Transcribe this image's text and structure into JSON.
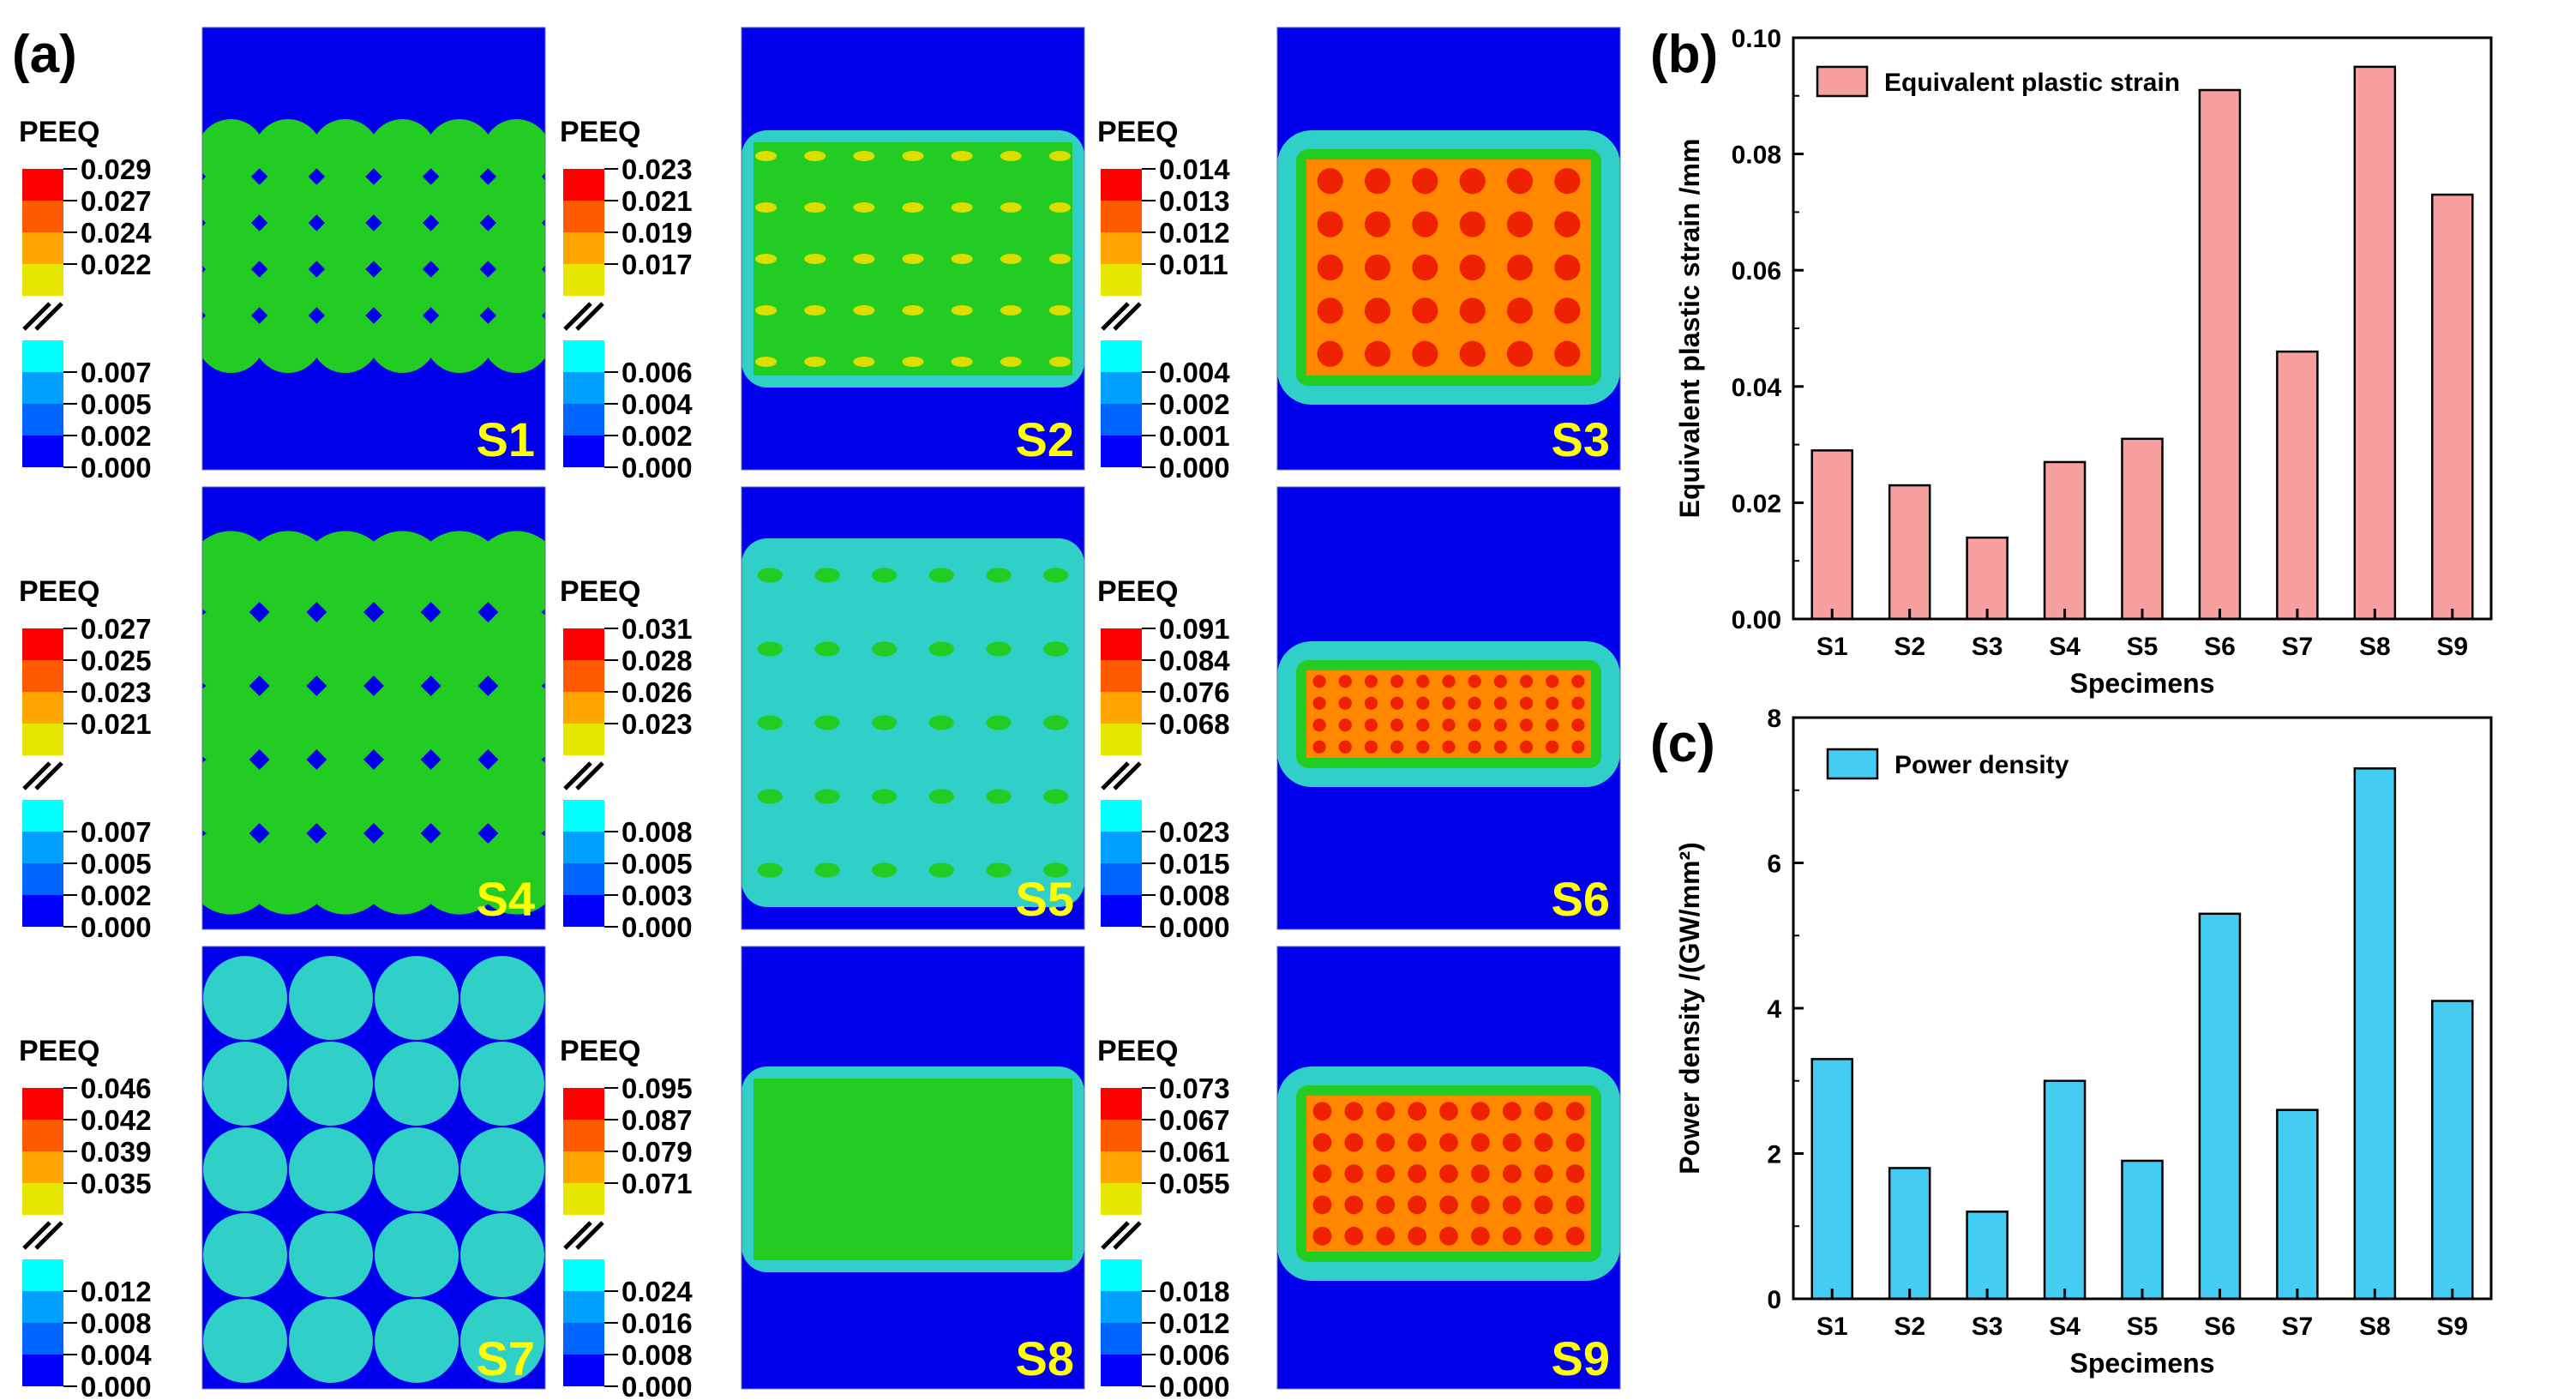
{
  "figure": {
    "panel_a_label": "(a)",
    "panel_b_label": "(b)",
    "panel_c_label": "(c)",
    "legend_title": "PEEQ",
    "legend_colors": {
      "high": [
        "#ff0000",
        "#ff5a00",
        "#ffa500",
        "#e6e600"
      ],
      "low": [
        "#00ffff",
        "#00a0ff",
        "#0064ff",
        "#0000ff"
      ]
    },
    "contour_colors": {
      "background": "#0000ee",
      "cyan": "#30d0c8",
      "green": "#22cc22",
      "yellow": "#dddd00",
      "red": "#ee2200",
      "orange": "#ff8800"
    }
  },
  "specimens": [
    {
      "label": "S1",
      "peeq_high": [
        "0.029",
        "0.027",
        "0.024",
        "0.022"
      ],
      "peeq_low": [
        "0.007",
        "0.005",
        "0.002",
        "0.000"
      ]
    },
    {
      "label": "S2",
      "peeq_high": [
        "0.023",
        "0.021",
        "0.019",
        "0.017"
      ],
      "peeq_low": [
        "0.006",
        "0.004",
        "0.002",
        "0.000"
      ]
    },
    {
      "label": "S3",
      "peeq_high": [
        "0.014",
        "0.013",
        "0.012",
        "0.011"
      ],
      "peeq_low": [
        "0.004",
        "0.002",
        "0.001",
        "0.000"
      ]
    },
    {
      "label": "S4",
      "peeq_high": [
        "0.027",
        "0.025",
        "0.023",
        "0.021"
      ],
      "peeq_low": [
        "0.007",
        "0.005",
        "0.002",
        "0.000"
      ]
    },
    {
      "label": "S5",
      "peeq_high": [
        "0.031",
        "0.028",
        "0.026",
        "0.023"
      ],
      "peeq_low": [
        "0.008",
        "0.005",
        "0.003",
        "0.000"
      ]
    },
    {
      "label": "S6",
      "peeq_high": [
        "0.091",
        "0.084",
        "0.076",
        "0.068"
      ],
      "peeq_low": [
        "0.023",
        "0.015",
        "0.008",
        "0.000"
      ]
    },
    {
      "label": "S7",
      "peeq_high": [
        "0.046",
        "0.042",
        "0.039",
        "0.035"
      ],
      "peeq_low": [
        "0.012",
        "0.008",
        "0.004",
        "0.000"
      ]
    },
    {
      "label": "S8",
      "peeq_high": [
        "0.095",
        "0.087",
        "0.079",
        "0.071"
      ],
      "peeq_low": [
        "0.024",
        "0.016",
        "0.008",
        "0.000"
      ]
    },
    {
      "label": "S9",
      "peeq_high": [
        "0.073",
        "0.067",
        "0.061",
        "0.055"
      ],
      "peeq_low": [
        "0.018",
        "0.012",
        "0.006",
        "0.000"
      ]
    }
  ],
  "chart_data": [
    {
      "type": "bar",
      "panel": "(b)",
      "categories": [
        "S1",
        "S2",
        "S3",
        "S4",
        "S5",
        "S6",
        "S7",
        "S8",
        "S9"
      ],
      "series": [
        {
          "name": "Equivalent plastic strain",
          "values": [
            0.029,
            0.023,
            0.014,
            0.027,
            0.031,
            0.091,
            0.046,
            0.095,
            0.073
          ]
        }
      ],
      "title": "",
      "xlabel": "Specimens",
      "ylabel": "Equivalent plastic strain /mm",
      "ylim": [
        0,
        0.1
      ],
      "yticks": [
        "0.00",
        "0.02",
        "0.04",
        "0.06",
        "0.08",
        "0.10"
      ],
      "bar_color": "#f8a0a0",
      "legend": "top-left"
    },
    {
      "type": "bar",
      "panel": "(c)",
      "categories": [
        "S1",
        "S2",
        "S3",
        "S4",
        "S5",
        "S6",
        "S7",
        "S8",
        "S9"
      ],
      "series": [
        {
          "name": "Power density",
          "values": [
            3.3,
            1.8,
            1.2,
            3.0,
            1.9,
            5.3,
            2.6,
            7.3,
            4.1
          ]
        }
      ],
      "title": "",
      "xlabel": "Specimens",
      "ylabel": "Power density /(GW/mm²)",
      "ylim": [
        0,
        8
      ],
      "yticks": [
        "0",
        "2",
        "4",
        "6",
        "8"
      ],
      "bar_color": "#44ccf2",
      "legend": "top-left"
    }
  ]
}
